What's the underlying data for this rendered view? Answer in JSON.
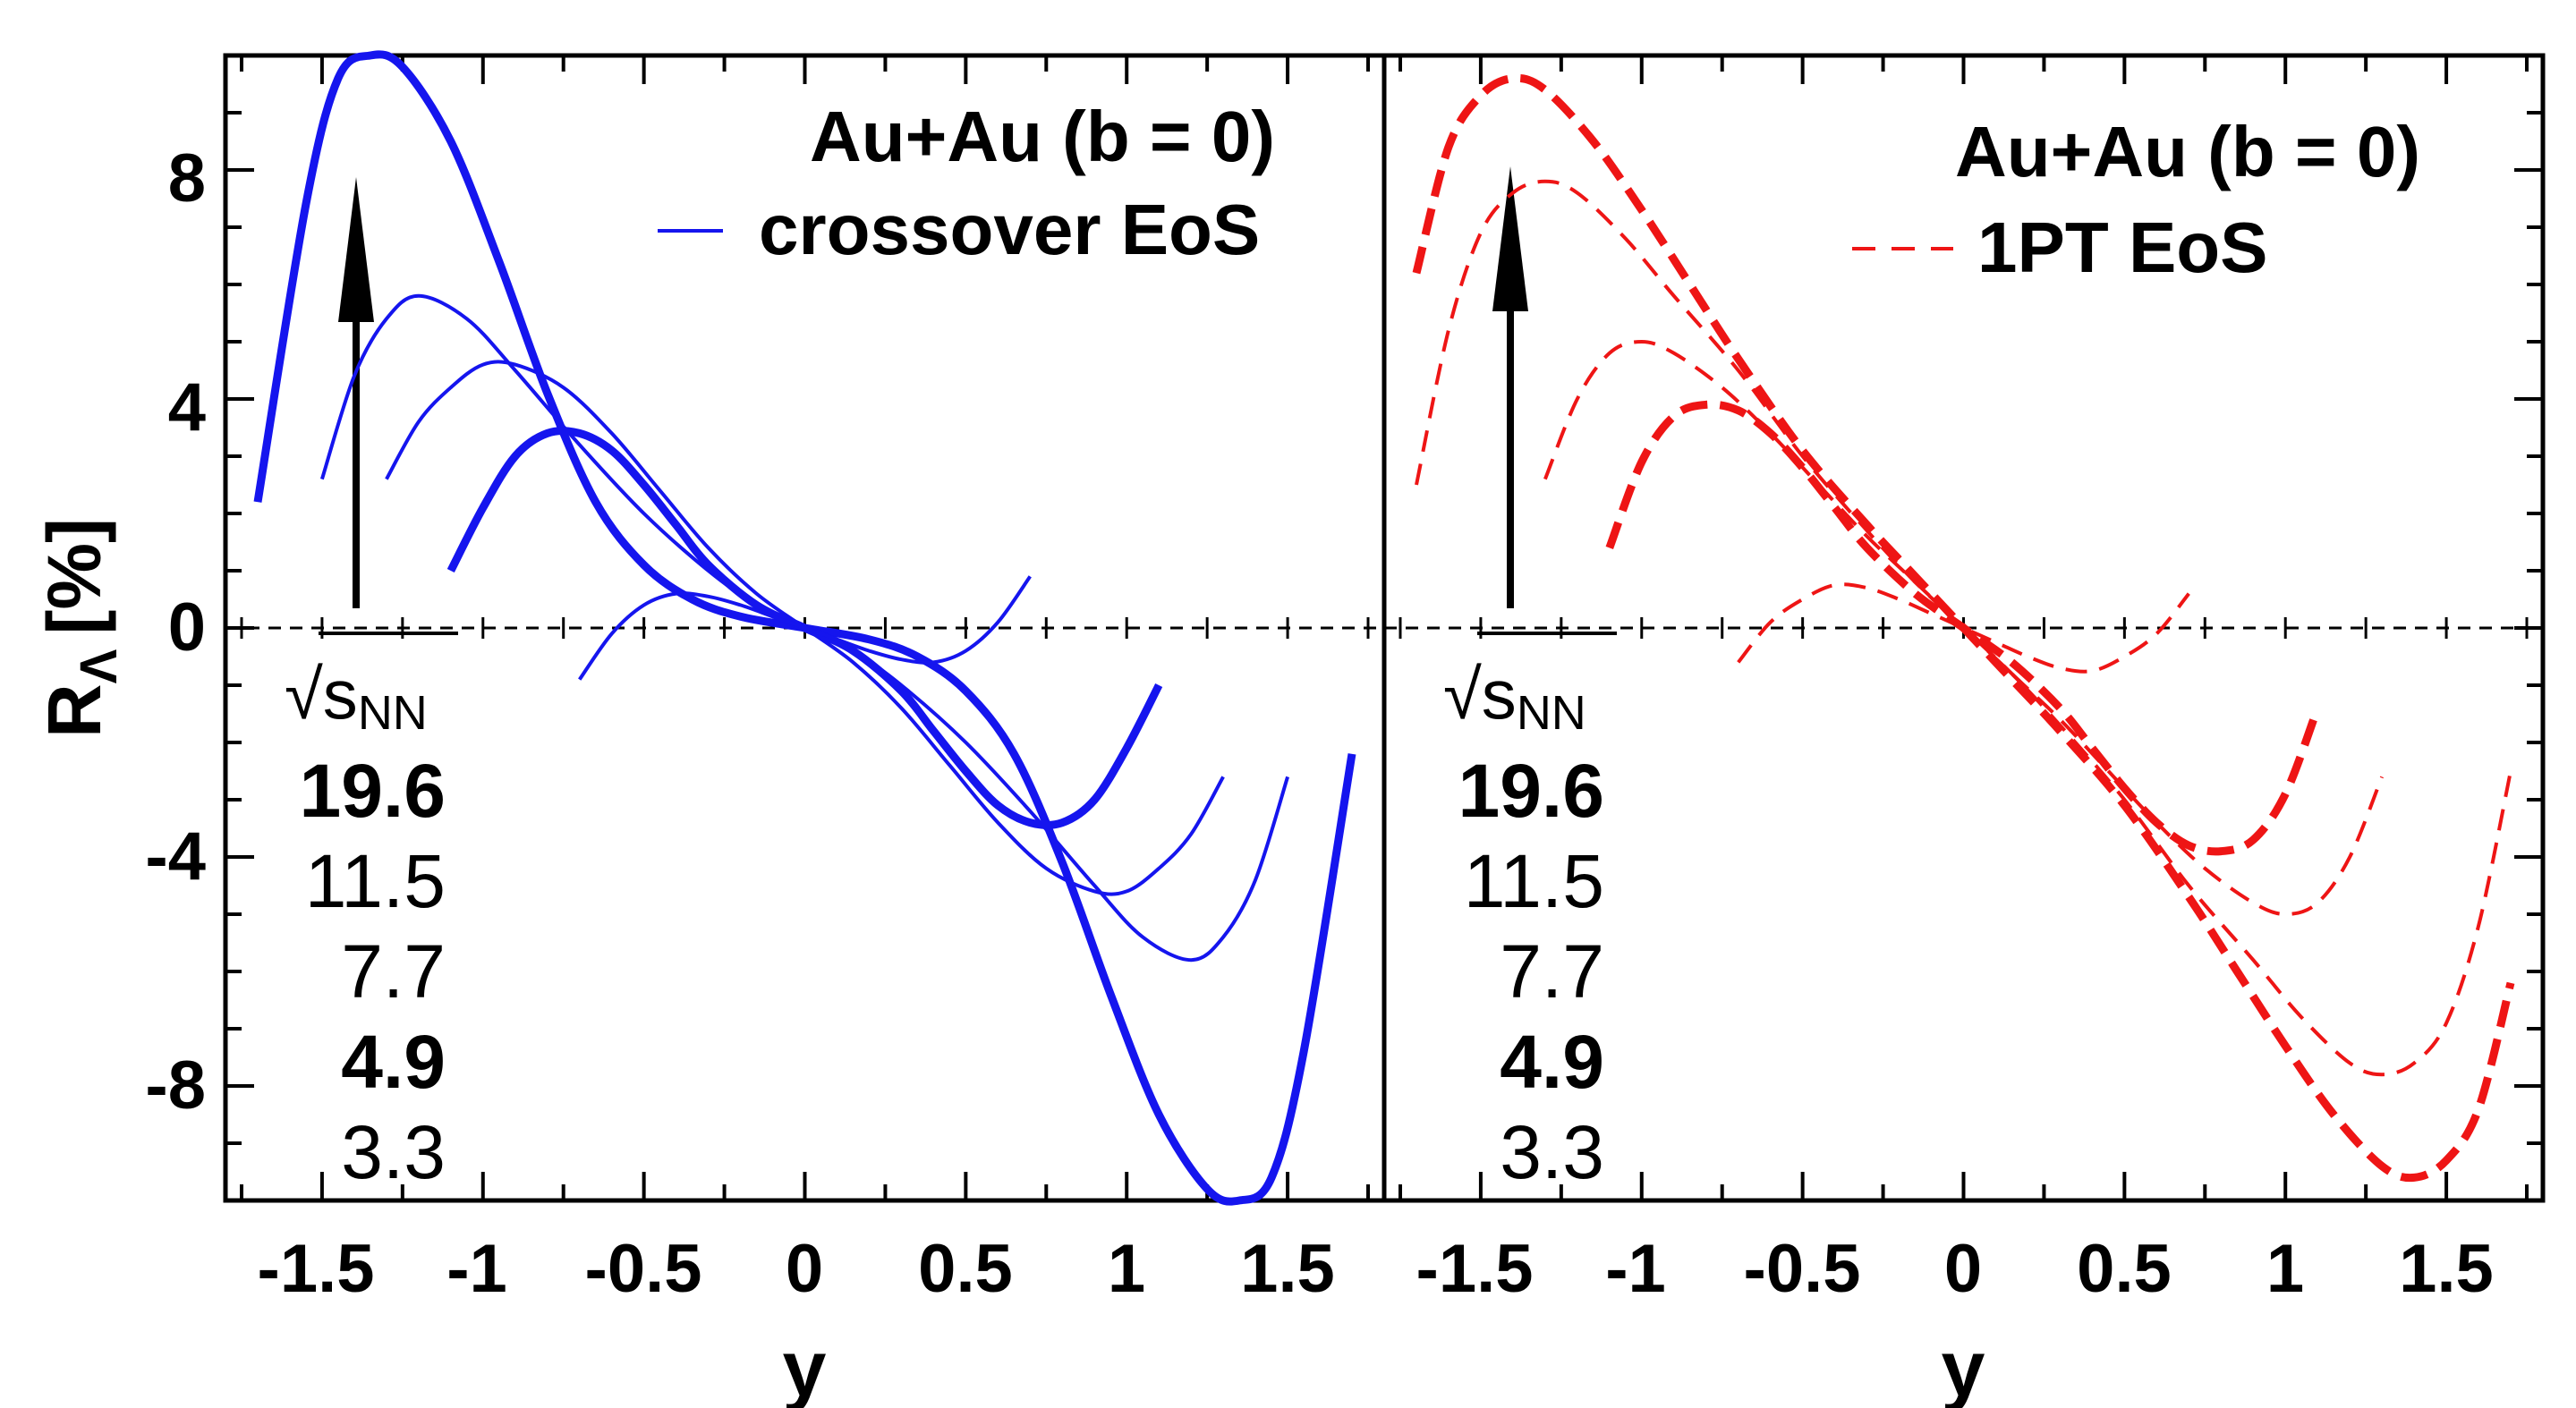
{
  "colors": {
    "crossover": "#1515ee",
    "onept": "#ee1515",
    "axis": "#000000"
  },
  "chart_data": [
    {
      "type": "line",
      "panel": "left",
      "title": "Au+Au (b = 0)",
      "legend_label": "crossover EoS",
      "line_style": "solid",
      "xlabel": "y",
      "ylabel": "R",
      "ylabel_subscript": "Λ",
      "ylabel_unit": "[%]",
      "xlim": [
        -1.8,
        1.8
      ],
      "ylim": [
        -10,
        10
      ],
      "xticks": [
        "-1.5",
        "-1",
        "-0.5",
        "0",
        "0.5",
        "1",
        "1.5"
      ],
      "yticks": [
        "8",
        "4",
        "0",
        "-4",
        "-8"
      ],
      "energy_header": "√s",
      "energy_header_sub": "NN",
      "energies": [
        "19.6",
        "11.5",
        "7.7",
        "4.9",
        "3.3"
      ],
      "series": [
        {
          "name": "19.6",
          "weight": "thick",
          "x": [
            -1.7,
            -1.55,
            -1.45,
            -1.35,
            -1.25,
            -1.1,
            -0.95,
            -0.8,
            -0.65,
            -0.5,
            -0.35,
            -0.2,
            0,
            0.2,
            0.35,
            0.5,
            0.65,
            0.8,
            0.95,
            1.1,
            1.25,
            1.35,
            1.45,
            1.55,
            1.7
          ],
          "y": [
            2.2,
            7.4,
            9.6,
            10,
            9.8,
            8.5,
            6.4,
            4.1,
            2.2,
            1.1,
            0.5,
            0.2,
            0,
            -0.2,
            -0.5,
            -1.1,
            -2.2,
            -4.1,
            -6.4,
            -8.5,
            -9.8,
            -10,
            -9.6,
            -7.4,
            -2.2
          ]
        },
        {
          "name": "11.5",
          "weight": "thin",
          "x": [
            -1.5,
            -1.4,
            -1.3,
            -1.2,
            -1.05,
            -0.9,
            -0.7,
            -0.5,
            -0.3,
            -0.15,
            0,
            0.15,
            0.3,
            0.5,
            0.7,
            0.9,
            1.05,
            1.2,
            1.3,
            1.4,
            1.5
          ],
          "y": [
            2.6,
            4.4,
            5.4,
            5.8,
            5.4,
            4.5,
            3.2,
            2.0,
            1.0,
            0.4,
            0,
            -0.4,
            -1.0,
            -2.0,
            -3.2,
            -4.5,
            -5.4,
            -5.8,
            -5.4,
            -4.4,
            -2.6
          ]
        },
        {
          "name": "7.7",
          "weight": "thin",
          "x": [
            -1.3,
            -1.2,
            -1.1,
            -1.0,
            -0.9,
            -0.75,
            -0.6,
            -0.45,
            -0.3,
            -0.15,
            0,
            0.15,
            0.3,
            0.45,
            0.6,
            0.75,
            0.9,
            1.0,
            1.1,
            1.2,
            1.3
          ],
          "y": [
            2.6,
            3.6,
            4.2,
            4.6,
            4.6,
            4.2,
            3.4,
            2.4,
            1.4,
            0.6,
            0,
            -0.6,
            -1.4,
            -2.4,
            -3.4,
            -4.2,
            -4.6,
            -4.6,
            -4.2,
            -3.6,
            -2.6
          ]
        },
        {
          "name": "4.9",
          "weight": "thick",
          "x": [
            -1.1,
            -1.0,
            -0.9,
            -0.8,
            -0.7,
            -0.6,
            -0.5,
            -0.4,
            -0.3,
            -0.15,
            0,
            0.15,
            0.3,
            0.4,
            0.5,
            0.6,
            0.7,
            0.8,
            0.9,
            1.0,
            1.1
          ],
          "y": [
            1.0,
            2.1,
            3.0,
            3.4,
            3.4,
            3.1,
            2.5,
            1.8,
            1.1,
            0.4,
            0,
            -0.4,
            -1.1,
            -1.8,
            -2.5,
            -3.1,
            -3.4,
            -3.4,
            -3.0,
            -2.1,
            -1.0
          ]
        },
        {
          "name": "3.3",
          "weight": "thin",
          "x": [
            -0.7,
            -0.6,
            -0.5,
            -0.4,
            -0.3,
            -0.2,
            -0.1,
            0,
            0.1,
            0.2,
            0.3,
            0.4,
            0.5,
            0.6,
            0.7
          ],
          "y": [
            -0.9,
            -0.1,
            0.4,
            0.6,
            0.55,
            0.4,
            0.2,
            0,
            -0.2,
            -0.4,
            -0.55,
            -0.6,
            -0.4,
            0.1,
            0.9
          ]
        }
      ]
    },
    {
      "type": "line",
      "panel": "right",
      "title": "Au+Au (b = 0)",
      "legend_label": "1PT EoS",
      "line_style": "dashed",
      "xlabel": "y",
      "xlim": [
        -1.8,
        1.8
      ],
      "ylim": [
        -10,
        10
      ],
      "xticks": [
        "-1.5",
        "-1",
        "-0.5",
        "0",
        "0.5",
        "1",
        "1.5"
      ],
      "energy_header": "√s",
      "energy_header_sub": "NN",
      "energies": [
        "19.6",
        "11.5",
        "7.7",
        "4.9",
        "3.3"
      ],
      "series": [
        {
          "name": "19.6",
          "weight": "thick",
          "x": [
            -1.7,
            -1.6,
            -1.5,
            -1.4,
            -1.3,
            -1.15,
            -1.0,
            -0.85,
            -0.7,
            -0.5,
            -0.3,
            -0.15,
            0,
            0.15,
            0.3,
            0.5,
            0.7,
            0.85,
            1.0,
            1.15,
            1.3,
            1.4,
            1.5,
            1.6,
            1.7
          ],
          "y": [
            6.2,
            8.4,
            9.3,
            9.6,
            9.4,
            8.5,
            7.3,
            6.0,
            4.7,
            3.1,
            1.8,
            0.9,
            0,
            -0.9,
            -1.8,
            -3.1,
            -4.7,
            -6.0,
            -7.3,
            -8.5,
            -9.4,
            -9.6,
            -9.3,
            -8.4,
            -6.2
          ]
        },
        {
          "name": "11.5",
          "weight": "thin",
          "x": [
            -1.7,
            -1.6,
            -1.5,
            -1.4,
            -1.3,
            -1.2,
            -1.05,
            -0.9,
            -0.7,
            -0.5,
            -0.3,
            -0.15,
            0,
            0.15,
            0.3,
            0.5,
            0.7,
            0.9,
            1.05,
            1.2,
            1.3,
            1.4,
            1.5,
            1.6,
            1.7
          ],
          "y": [
            2.5,
            5.2,
            6.9,
            7.6,
            7.8,
            7.6,
            6.8,
            5.8,
            4.5,
            3.0,
            1.7,
            0.8,
            0,
            -0.8,
            -1.7,
            -3.0,
            -4.5,
            -5.8,
            -6.8,
            -7.6,
            -7.8,
            -7.6,
            -6.9,
            -5.2,
            -2.5
          ]
        },
        {
          "name": "7.7",
          "weight": "thin",
          "x": [
            -1.3,
            -1.2,
            -1.1,
            -1.0,
            -0.9,
            -0.75,
            -0.6,
            -0.45,
            -0.3,
            -0.15,
            0,
            0.15,
            0.3,
            0.45,
            0.6,
            0.75,
            0.9,
            1.0,
            1.1,
            1.2,
            1.3
          ],
          "y": [
            2.6,
            4.0,
            4.8,
            5.0,
            4.8,
            4.2,
            3.4,
            2.5,
            1.6,
            0.8,
            0,
            -0.8,
            -1.6,
            -2.5,
            -3.4,
            -4.2,
            -4.8,
            -5.0,
            -4.8,
            -4.0,
            -2.6
          ]
        },
        {
          "name": "4.9",
          "weight": "thick",
          "x": [
            -1.1,
            -1.0,
            -0.9,
            -0.8,
            -0.7,
            -0.6,
            -0.5,
            -0.4,
            -0.3,
            -0.15,
            0,
            0.15,
            0.3,
            0.4,
            0.5,
            0.6,
            0.7,
            0.8,
            0.9,
            1.0,
            1.1
          ],
          "y": [
            1.4,
            2.9,
            3.7,
            3.9,
            3.8,
            3.4,
            2.8,
            2.1,
            1.4,
            0.6,
            0,
            -0.6,
            -1.4,
            -2.1,
            -2.8,
            -3.4,
            -3.8,
            -3.9,
            -3.7,
            -2.9,
            -1.4
          ]
        },
        {
          "name": "3.3",
          "weight": "thin",
          "x": [
            -0.7,
            -0.6,
            -0.5,
            -0.4,
            -0.3,
            -0.2,
            -0.1,
            0,
            0.1,
            0.2,
            0.3,
            0.4,
            0.5,
            0.6,
            0.7
          ],
          "y": [
            -0.6,
            0.1,
            0.5,
            0.75,
            0.7,
            0.5,
            0.25,
            0,
            -0.25,
            -0.5,
            -0.7,
            -0.75,
            -0.5,
            -0.1,
            0.6
          ]
        }
      ]
    }
  ]
}
